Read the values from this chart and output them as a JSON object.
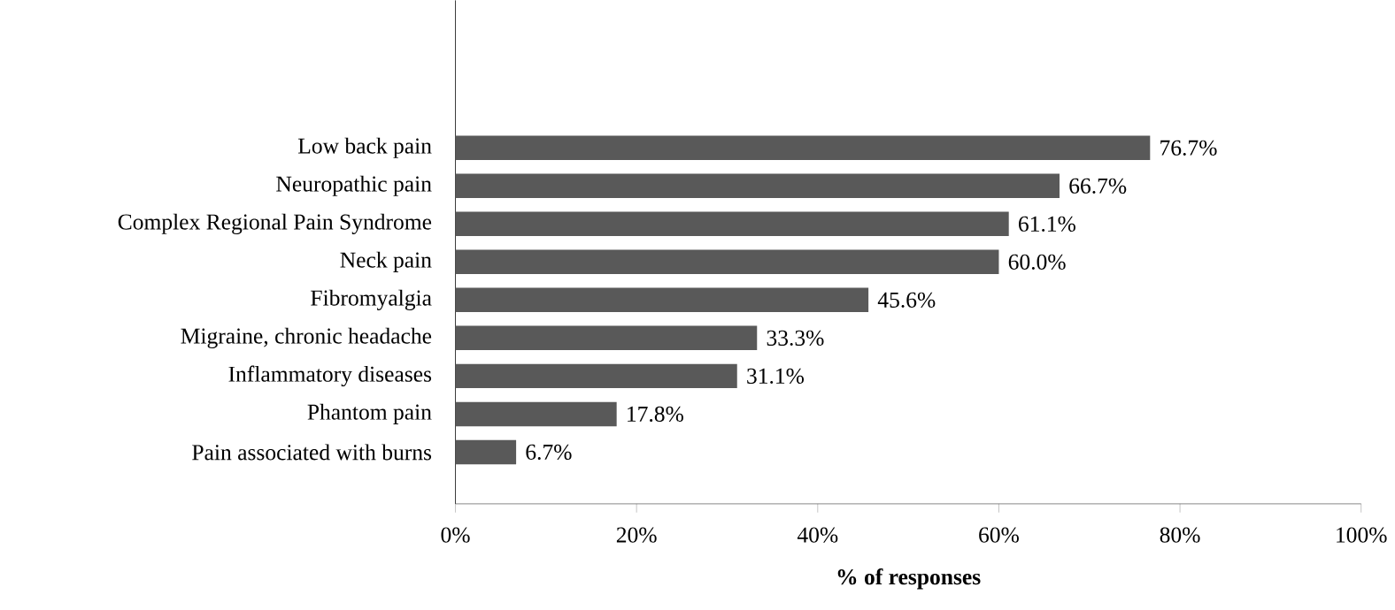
{
  "chart_data": {
    "type": "bar",
    "orientation": "horizontal",
    "xlabel": "% of responses",
    "categories": [
      "Low back pain",
      "Neuropathic pain",
      "Complex Regional Pain Syndrome",
      "Neck pain",
      "Fibromyalgia",
      "Migraine, chronic headache",
      "Inflammatory diseases",
      "Phantom pain",
      "Pain associated with burns"
    ],
    "values": [
      76.7,
      66.7,
      61.1,
      60.0,
      45.6,
      33.3,
      31.1,
      17.8,
      6.7
    ],
    "value_labels": [
      "76.7%",
      "66.7%",
      "61.1%",
      "60.0%",
      "45.6%",
      "33.3%",
      "31.1%",
      "17.8%",
      "6.7%"
    ],
    "color": "#595959",
    "xlim": [
      0,
      100
    ],
    "xticks": [
      {
        "value": 0,
        "label": "0%"
      },
      {
        "value": 20,
        "label": "20%"
      },
      {
        "value": 40,
        "label": "40%"
      },
      {
        "value": 60,
        "label": "60%"
      },
      {
        "value": 80,
        "label": "80%"
      },
      {
        "value": 100,
        "label": "100%"
      }
    ],
    "grid": false
  }
}
